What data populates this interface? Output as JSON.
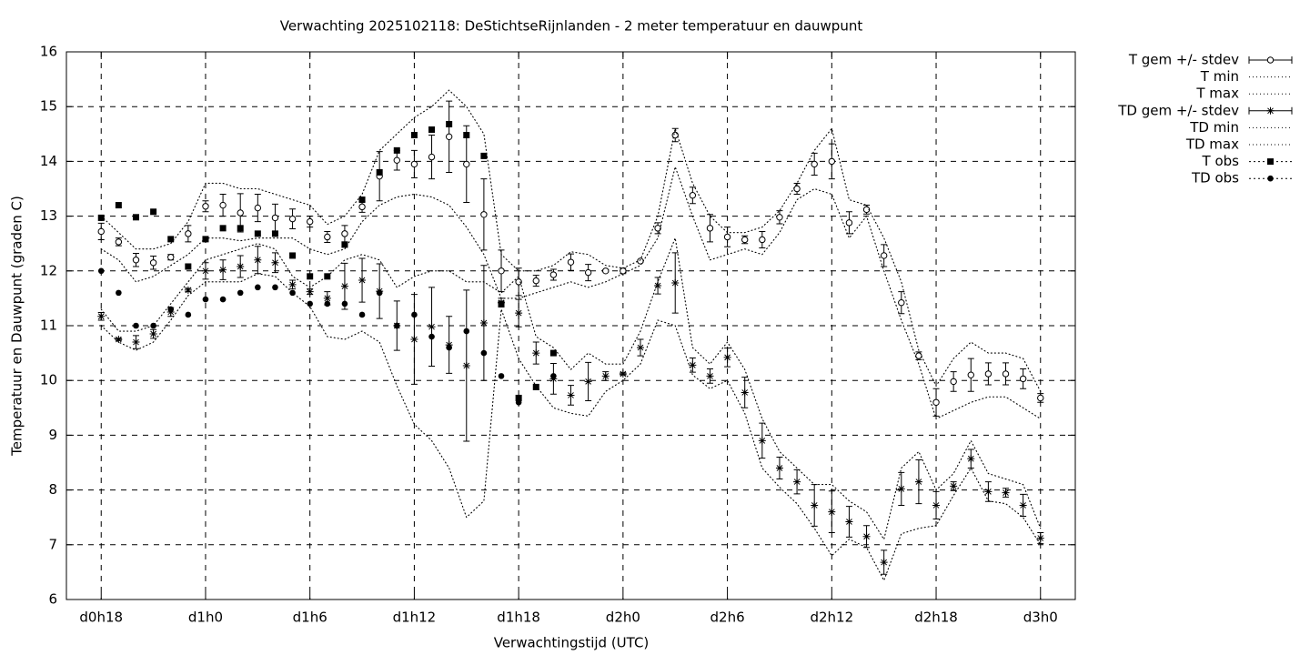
{
  "chart_data": {
    "type": "errorbar",
    "title": "Verwachting 2025102118: DeStichtseRijnlanden - 2 meter temperatuur en dauwpunt",
    "xlabel": "Verwachtingstijd (UTC)",
    "ylabel": "Temperatuur en Dauwpunt (graden C)",
    "xlim": [
      16,
      74
    ],
    "ylim": [
      6,
      16
    ],
    "xticks": [
      {
        "value": 18,
        "label": "d0h18"
      },
      {
        "value": 24,
        "label": "d1h0"
      },
      {
        "value": 30,
        "label": "d1h6"
      },
      {
        "value": 36,
        "label": "d1h12"
      },
      {
        "value": 42,
        "label": "d1h18"
      },
      {
        "value": 48,
        "label": "d2h0"
      },
      {
        "value": 54,
        "label": "d2h6"
      },
      {
        "value": 60,
        "label": "d2h12"
      },
      {
        "value": 66,
        "label": "d2h18"
      },
      {
        "value": 72,
        "label": "d3h0"
      }
    ],
    "yticks": [
      6,
      7,
      8,
      9,
      10,
      11,
      12,
      13,
      14,
      15,
      16
    ],
    "grid": true,
    "legend": "outside-top-right",
    "x": [
      18,
      19,
      20,
      21,
      22,
      23,
      24,
      25,
      26,
      27,
      28,
      29,
      30,
      31,
      32,
      33,
      34,
      35,
      36,
      37,
      38,
      39,
      40,
      41,
      42,
      43,
      44,
      45,
      46,
      47,
      48,
      49,
      50,
      51,
      52,
      53,
      54,
      55,
      56,
      57,
      58,
      59,
      60,
      61,
      62,
      63,
      64,
      65,
      66,
      67,
      68,
      69,
      70,
      71,
      72
    ],
    "series": [
      {
        "name": "T gem +/- stdev",
        "color": "#000000",
        "style": "errorbars",
        "marker": "open-circle",
        "values": [
          12.72,
          12.53,
          12.2,
          12.15,
          12.25,
          12.68,
          13.18,
          13.2,
          13.06,
          13.15,
          12.97,
          12.95,
          12.9,
          12.62,
          12.68,
          13.17,
          13.73,
          14.02,
          13.95,
          14.08,
          14.45,
          13.95,
          13.03,
          12.0,
          11.8,
          11.82,
          11.93,
          12.16,
          11.97,
          12.0,
          12.0,
          12.18,
          12.78,
          14.48,
          13.38,
          12.78,
          12.62,
          12.57,
          12.57,
          12.98,
          13.5,
          13.95,
          14.0,
          12.88,
          13.12,
          12.28,
          11.42,
          10.45,
          9.6,
          9.98,
          10.1,
          10.12,
          10.12,
          10.03,
          9.68
        ],
        "errors": [
          0.15,
          0.07,
          0.12,
          0.12,
          0.05,
          0.15,
          0.1,
          0.2,
          0.35,
          0.25,
          0.25,
          0.18,
          0.1,
          0.1,
          0.15,
          0.1,
          0.45,
          0.18,
          0.25,
          0.4,
          0.65,
          0.7,
          0.65,
          0.38,
          0.25,
          0.1,
          0.1,
          0.15,
          0.15,
          0.02,
          0.05,
          0.02,
          0.1,
          0.12,
          0.15,
          0.25,
          0.18,
          0.07,
          0.15,
          0.12,
          0.1,
          0.2,
          0.32,
          0.2,
          0.08,
          0.2,
          0.2,
          0.07,
          0.25,
          0.18,
          0.3,
          0.2,
          0.2,
          0.18,
          0.08
        ]
      },
      {
        "name": "T min",
        "color": "#000000",
        "style": "line",
        "dash": "dotted",
        "values": [
          12.4,
          12.2,
          11.8,
          11.9,
          12.1,
          12.3,
          12.6,
          12.6,
          12.55,
          12.6,
          12.6,
          12.6,
          12.4,
          12.3,
          12.4,
          12.9,
          13.2,
          13.35,
          13.4,
          13.35,
          13.2,
          12.8,
          12.3,
          11.5,
          11.5,
          11.6,
          11.7,
          11.8,
          11.7,
          11.8,
          11.95,
          12.1,
          12.6,
          13.9,
          13.0,
          12.2,
          12.3,
          12.4,
          12.3,
          12.7,
          13.3,
          13.5,
          13.4,
          12.6,
          13.0,
          12.0,
          11.1,
          10.3,
          9.3,
          9.45,
          9.6,
          9.7,
          9.7,
          9.5,
          9.3
        ]
      },
      {
        "name": "T max",
        "color": "#000000",
        "style": "line",
        "dash": "dotted",
        "values": [
          13.0,
          12.7,
          12.4,
          12.4,
          12.5,
          12.9,
          13.6,
          13.6,
          13.5,
          13.5,
          13.4,
          13.3,
          13.2,
          12.85,
          13.0,
          13.4,
          14.2,
          14.5,
          14.8,
          15.0,
          15.3,
          15.0,
          14.5,
          12.3,
          12.0,
          12.0,
          12.1,
          12.35,
          12.3,
          12.1,
          12.05,
          12.2,
          13.0,
          14.6,
          13.6,
          13.0,
          12.7,
          12.7,
          12.8,
          13.1,
          13.6,
          14.2,
          14.6,
          13.3,
          13.2,
          12.6,
          11.8,
          10.55,
          9.9,
          10.4,
          10.7,
          10.5,
          10.5,
          10.4,
          9.8
        ]
      },
      {
        "name": "TD gem +/- stdev",
        "color": "#000000",
        "style": "errorbars",
        "marker": "star",
        "values": [
          11.17,
          10.75,
          10.7,
          10.85,
          11.25,
          11.65,
          12.0,
          12.02,
          12.08,
          12.2,
          12.15,
          11.75,
          11.62,
          11.5,
          11.72,
          11.83,
          11.63,
          11.0,
          10.75,
          10.98,
          10.65,
          10.27,
          11.05,
          11.42,
          11.23,
          10.5,
          10.03,
          9.73,
          9.98,
          10.08,
          10.12,
          10.6,
          11.73,
          11.78,
          10.28,
          10.08,
          10.42,
          9.78,
          8.9,
          8.4,
          8.15,
          7.72,
          7.6,
          7.42,
          7.15,
          6.68,
          8.02,
          8.15,
          7.72,
          8.07,
          8.57,
          7.97,
          7.95,
          7.72,
          7.12
        ],
        "errors": [
          0.07,
          0.02,
          0.12,
          0.08,
          0.08,
          0.03,
          0.15,
          0.18,
          0.2,
          0.25,
          0.18,
          0.08,
          0.05,
          0.12,
          0.42,
          0.4,
          0.5,
          0.45,
          0.82,
          0.72,
          0.52,
          1.38,
          1.05,
          0.08,
          0.25,
          0.2,
          0.28,
          0.18,
          0.35,
          0.08,
          0.02,
          0.15,
          0.15,
          0.55,
          0.13,
          0.13,
          0.17,
          0.28,
          0.32,
          0.2,
          0.22,
          0.38,
          0.38,
          0.28,
          0.2,
          0.22,
          0.3,
          0.4,
          0.25,
          0.08,
          0.17,
          0.18,
          0.08,
          0.2,
          0.1
        ]
      },
      {
        "name": "TD min",
        "color": "#000000",
        "style": "line",
        "dash": "dotted",
        "values": [
          11.0,
          10.7,
          10.55,
          10.7,
          11.1,
          11.55,
          11.8,
          11.8,
          11.8,
          11.95,
          11.9,
          11.6,
          11.35,
          10.8,
          10.75,
          10.9,
          10.7,
          9.9,
          9.2,
          8.9,
          8.4,
          7.5,
          7.8,
          11.3,
          10.4,
          9.9,
          9.5,
          9.4,
          9.35,
          9.8,
          10.0,
          10.3,
          11.1,
          11.0,
          10.1,
          9.85,
          10.0,
          9.4,
          8.4,
          8.05,
          7.75,
          7.3,
          6.8,
          7.1,
          6.95,
          6.35,
          7.2,
          7.3,
          7.35,
          7.9,
          8.4,
          7.8,
          7.75,
          7.5,
          7.0
        ]
      },
      {
        "name": "TD max",
        "color": "#000000",
        "style": "line",
        "dash": "dotted",
        "values": [
          11.3,
          10.9,
          10.9,
          11.0,
          11.4,
          11.8,
          12.2,
          12.3,
          12.4,
          12.5,
          12.4,
          11.9,
          11.7,
          11.9,
          12.2,
          12.3,
          12.2,
          11.7,
          11.9,
          12.0,
          12.0,
          11.8,
          11.8,
          11.6,
          11.9,
          10.8,
          10.6,
          10.2,
          10.5,
          10.3,
          10.3,
          10.9,
          11.8,
          12.6,
          10.6,
          10.3,
          10.7,
          10.2,
          9.3,
          8.7,
          8.4,
          8.1,
          8.1,
          7.8,
          7.6,
          7.1,
          8.4,
          8.7,
          8.0,
          8.3,
          8.9,
          8.3,
          8.2,
          8.1,
          7.3
        ]
      },
      {
        "name": "T obs",
        "color": "#000000",
        "style": "points",
        "marker": "square",
        "values": [
          12.97,
          13.2,
          12.98,
          13.08,
          12.58,
          12.08,
          12.58,
          12.78,
          12.78,
          12.68,
          12.68,
          12.28,
          11.9,
          11.9,
          12.48,
          13.3,
          13.8,
          14.2,
          14.48,
          14.58,
          14.68,
          14.48,
          14.1,
          11.4,
          9.68,
          9.88,
          10.5,
          null,
          null,
          null,
          null,
          null,
          null,
          null,
          null,
          null,
          null,
          null,
          null,
          null,
          null,
          null,
          null,
          null,
          null,
          null,
          null,
          null,
          null,
          null,
          null,
          null,
          null,
          null,
          null
        ]
      },
      {
        "name": "TD obs",
        "color": "#000000",
        "style": "points",
        "marker": "dot",
        "values": [
          12.0,
          11.6,
          11.0,
          11.0,
          11.3,
          11.2,
          11.48,
          11.48,
          11.6,
          11.7,
          11.7,
          11.6,
          11.4,
          11.4,
          11.4,
          11.2,
          11.6,
          11.0,
          11.2,
          10.8,
          10.6,
          10.9,
          10.5,
          10.08,
          9.6,
          null,
          10.08,
          null,
          null,
          null,
          null,
          null,
          null,
          null,
          null,
          null,
          null,
          null,
          null,
          null,
          null,
          null,
          null,
          null,
          null,
          null,
          null,
          null,
          null,
          null,
          null,
          null,
          null,
          null,
          null
        ]
      }
    ]
  }
}
